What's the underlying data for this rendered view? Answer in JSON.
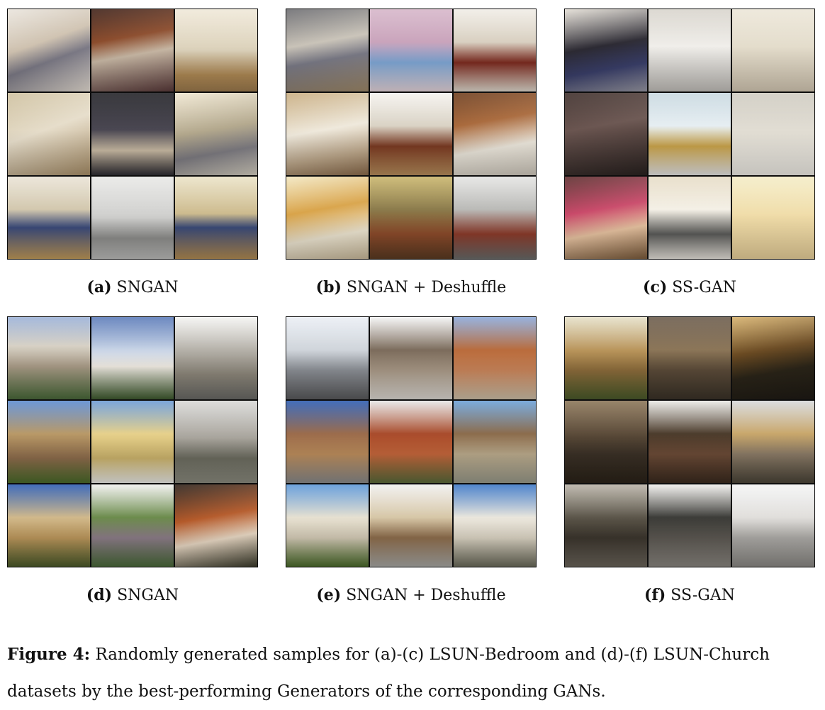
{
  "panels": [
    {
      "label": "(a)",
      "name": "SNGAN"
    },
    {
      "label": "(b)",
      "name": "SNGAN + Deshuffle"
    },
    {
      "label": "(c)",
      "name": "SS-GAN"
    },
    {
      "label": "(d)",
      "name": "SNGAN"
    },
    {
      "label": "(e)",
      "name": "SNGAN + Deshuffle"
    },
    {
      "label": "(f)",
      "name": "SS-GAN"
    }
  ],
  "figure_caption": {
    "label": "Figure 4:",
    "text": "Randomly generated samples for (a)-(c) LSUN-Bedroom and (d)-(f) LSUN-Church datasets by the best-performing Generators of the corresponding GANs."
  }
}
